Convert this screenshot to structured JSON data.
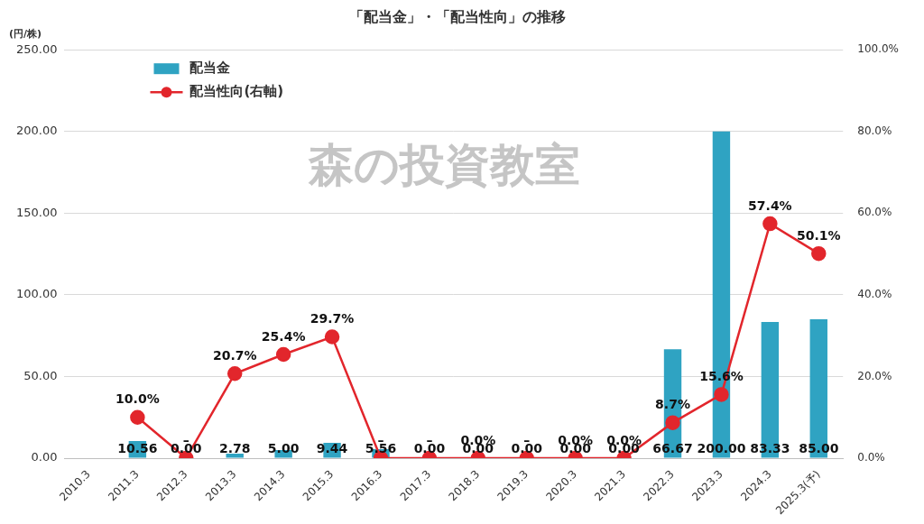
{
  "chart_data": {
    "type": "bar",
    "title": "「配当金」・「配当性向」の推移",
    "ylabel": "(円/株)",
    "annotation": "森の投資教室",
    "categories": [
      "2010.3",
      "2011.3",
      "2012.3",
      "2013.3",
      "2014.3",
      "2015.3",
      "2016.3",
      "2017.3",
      "2018.3",
      "2019.3",
      "2020.3",
      "2021.3",
      "2022.3",
      "2023.3",
      "2024.3",
      "2025.3(予)"
    ],
    "series": [
      {
        "name": "配当金",
        "type": "bar",
        "color": "#2fa3c2",
        "values": [
          null,
          10.56,
          0,
          2.78,
          5.0,
          9.44,
          5.56,
          0,
          0,
          0,
          0,
          0,
          66.67,
          200.0,
          83.33,
          85.0
        ],
        "value_labels": [
          null,
          "10.56",
          "0.00",
          "2.78",
          "5.00",
          "9.44",
          "5.56",
          "0.00",
          "0.00",
          "0.00",
          "0.00",
          "0.00",
          "66.67",
          "200.00",
          "83.33",
          "85.00"
        ]
      },
      {
        "name": "配当性向(右軸)",
        "type": "line",
        "axis": "y2",
        "color": "#e2262c",
        "marker": "circle",
        "line_style": "solid",
        "values": [
          null,
          10.0,
          0,
          20.7,
          25.4,
          29.7,
          0,
          0,
          0,
          0,
          0,
          0,
          8.7,
          15.6,
          57.4,
          50.1
        ],
        "value_labels": [
          null,
          "10.0%",
          "–",
          "20.7%",
          "25.4%",
          "29.7%",
          "–",
          "–",
          "0.0%",
          "–",
          "0.0%",
          "0.0%",
          "8.7%",
          "15.6%",
          "57.4%",
          "50.1%"
        ]
      }
    ],
    "ylim": [
      0,
      250
    ],
    "yticks": [
      {
        "value": 0,
        "label": "0.00"
      },
      {
        "value": 50,
        "label": "50.00"
      },
      {
        "value": 100,
        "label": "100.00"
      },
      {
        "value": 150,
        "label": "150.00"
      },
      {
        "value": 200,
        "label": "200.00"
      },
      {
        "value": 250,
        "label": "250.00"
      }
    ],
    "y2lim": [
      0,
      100
    ],
    "y2ticks": [
      {
        "value": 0,
        "label": "0.0%"
      },
      {
        "value": 20,
        "label": "20.0%"
      },
      {
        "value": 40,
        "label": "40.0%"
      },
      {
        "value": 60,
        "label": "60.0%"
      },
      {
        "value": 80,
        "label": "80.0%"
      },
      {
        "value": 100,
        "label": "100.0%"
      }
    ],
    "grid": true,
    "legend": "upper left",
    "data_labels": true
  }
}
